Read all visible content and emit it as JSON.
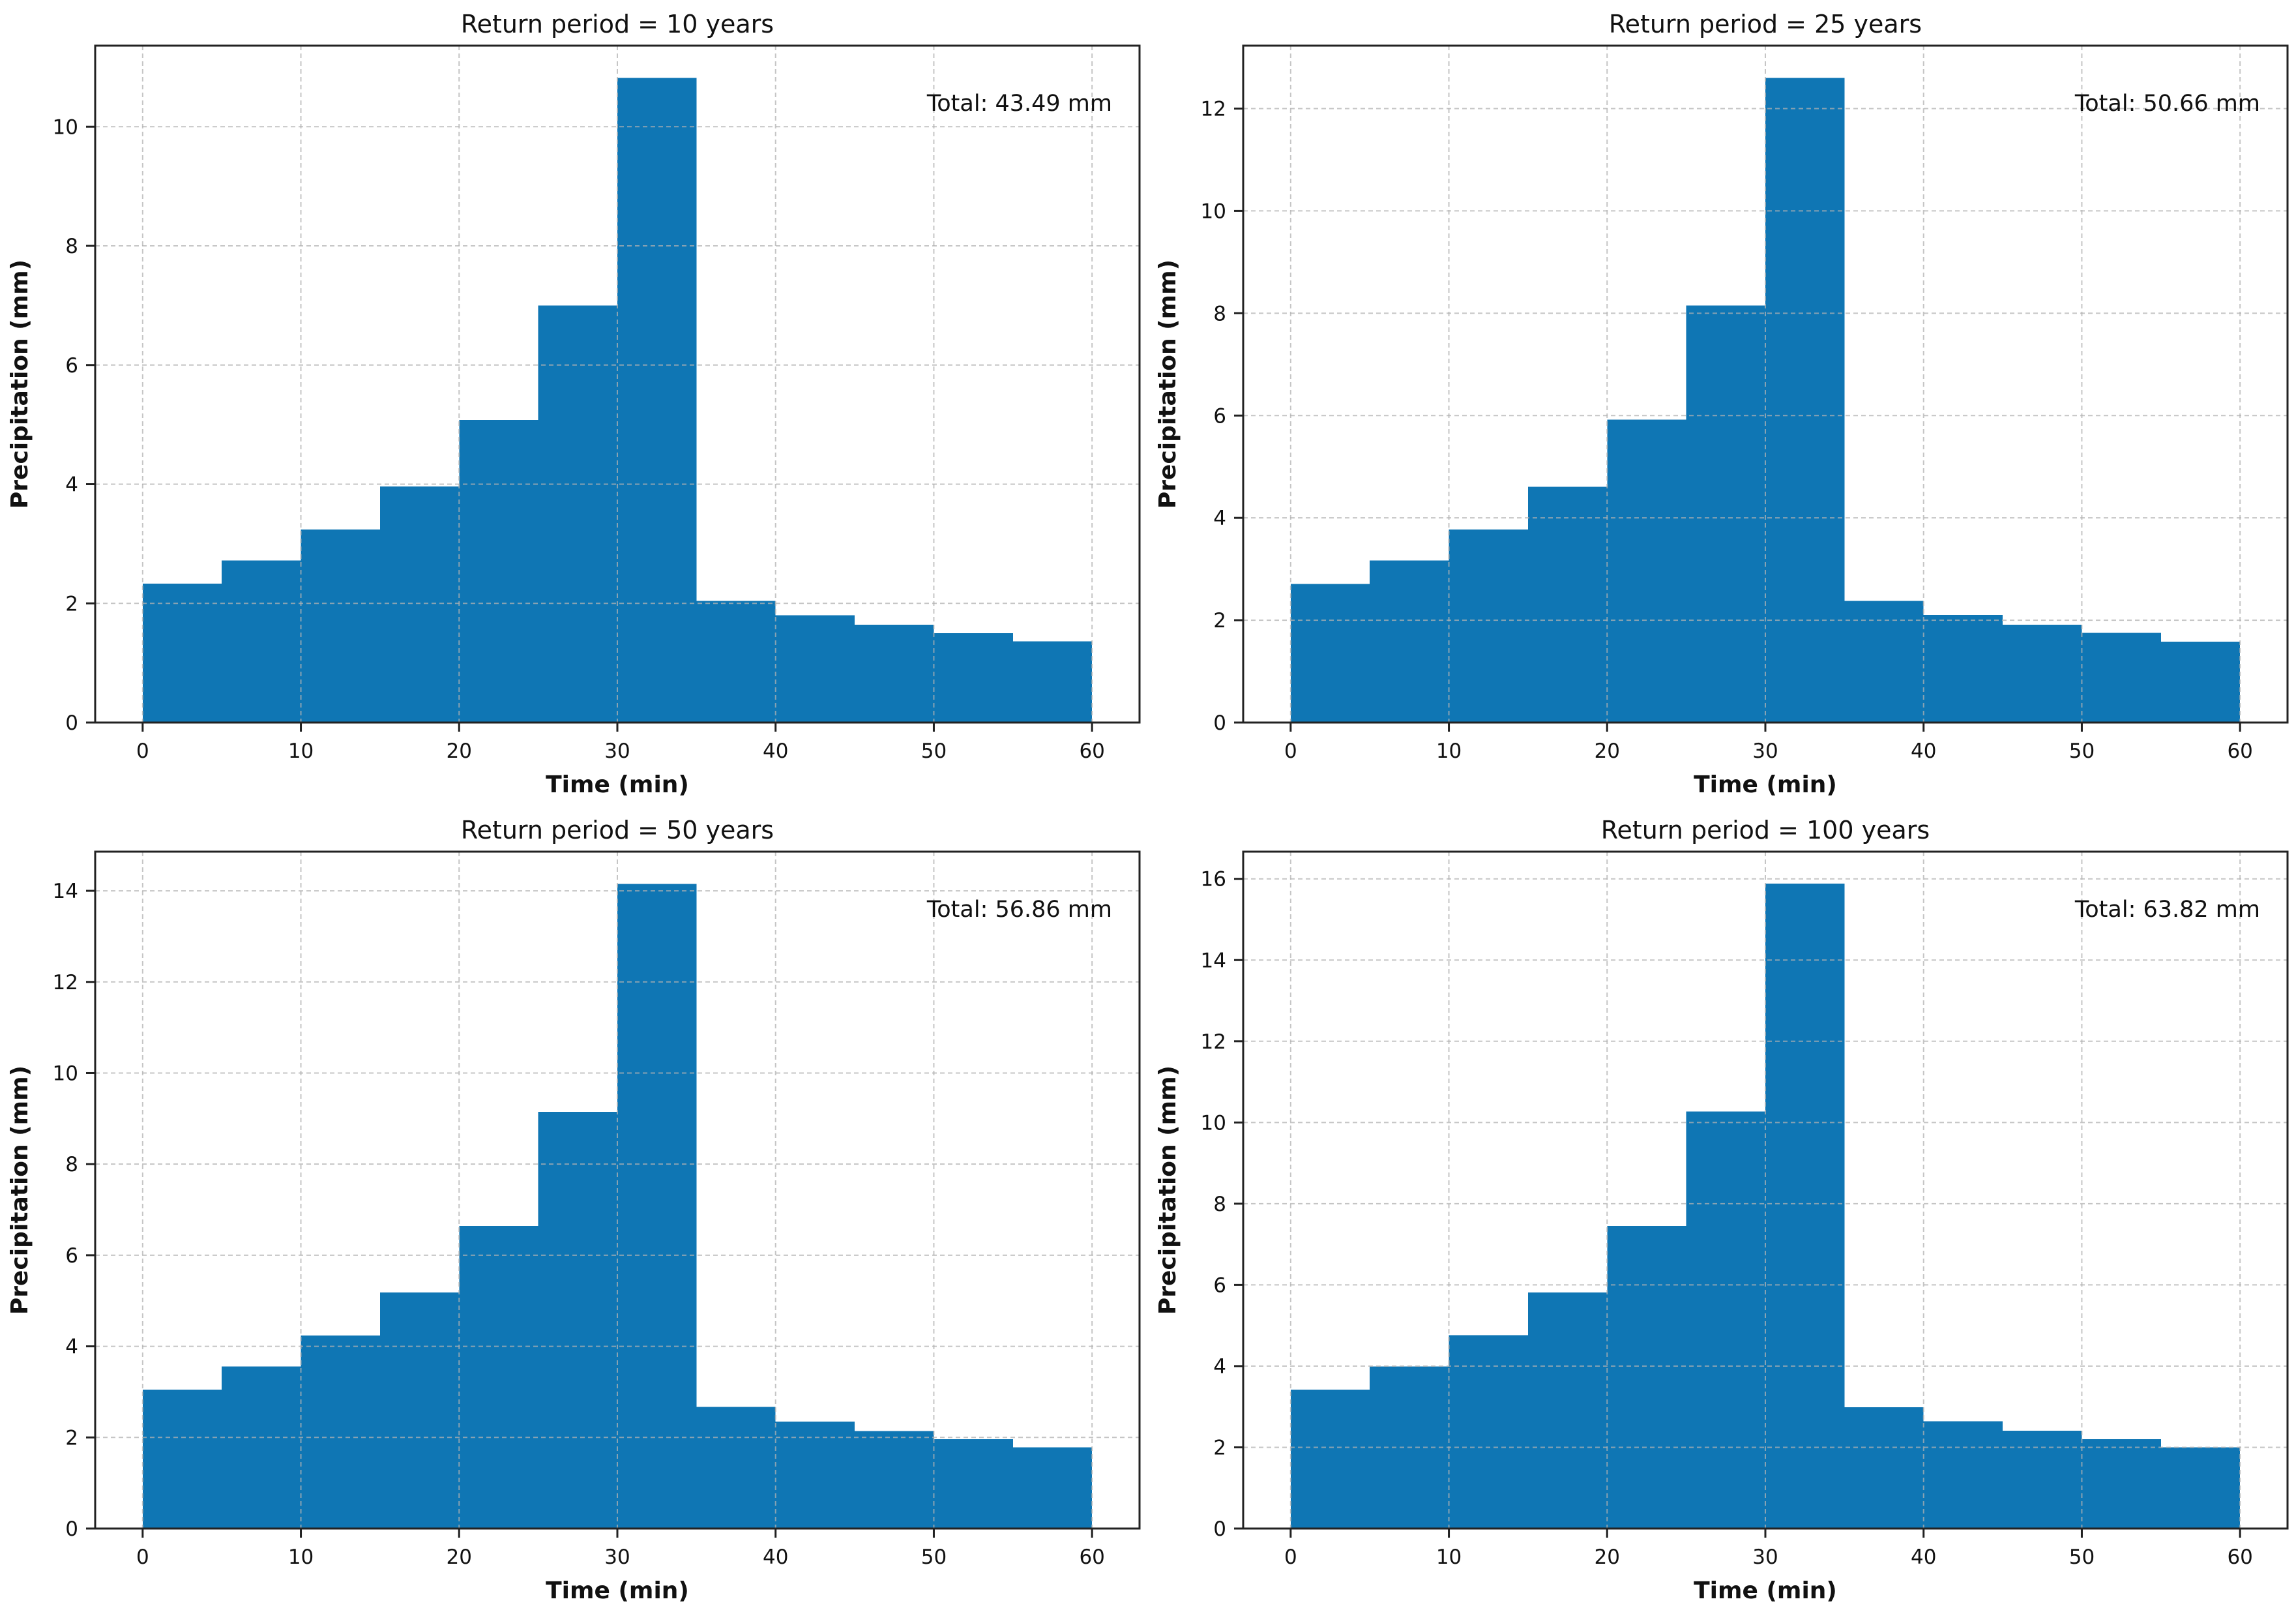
{
  "figure": {
    "background": "#ffffff",
    "bar_color": "#0f76b4",
    "grid_color": "rgba(178,178,178,0.75)",
    "spine_color": "#222222",
    "tick_color": "#222222",
    "text_color": "#111111"
  },
  "chart_data": [
    {
      "type": "bar",
      "title": "Return period = 10 years",
      "xlabel": "Time (min)",
      "ylabel": "Precipitation (mm)",
      "annotation": "Total: 43.49 mm",
      "bin_start_min": [
        0,
        5,
        10,
        15,
        20,
        25,
        30,
        35,
        40,
        45,
        50,
        55
      ],
      "bar_width_min": 5,
      "values": [
        2.33,
        2.72,
        3.24,
        3.96,
        5.08,
        7.0,
        10.82,
        2.04,
        1.8,
        1.64,
        1.5,
        1.36
      ],
      "xticks": [
        0,
        10,
        20,
        30,
        40,
        50,
        60
      ],
      "yticks": [
        0,
        2,
        4,
        6,
        8,
        10
      ],
      "xlim": [
        -3,
        63
      ],
      "ylim": [
        0,
        11.36
      ],
      "grid": true,
      "legend": null
    },
    {
      "type": "bar",
      "title": "Return period = 25 years",
      "xlabel": "Time (min)",
      "ylabel": "Precipitation (mm)",
      "annotation": "Total: 50.66 mm",
      "bin_start_min": [
        0,
        5,
        10,
        15,
        20,
        25,
        30,
        35,
        40,
        45,
        50,
        55
      ],
      "bar_width_min": 5,
      "values": [
        2.71,
        3.17,
        3.77,
        4.61,
        5.92,
        8.15,
        12.6,
        2.38,
        2.1,
        1.91,
        1.75,
        1.58
      ],
      "xticks": [
        0,
        10,
        20,
        30,
        40,
        50,
        60
      ],
      "yticks": [
        0,
        2,
        4,
        6,
        8,
        10,
        12
      ],
      "xlim": [
        -3,
        63
      ],
      "ylim": [
        0,
        13.23
      ],
      "grid": true,
      "legend": null
    },
    {
      "type": "bar",
      "title": "Return period = 50 years",
      "xlabel": "Time (min)",
      "ylabel": "Precipitation (mm)",
      "annotation": "Total: 56.86 mm",
      "bin_start_min": [
        0,
        5,
        10,
        15,
        20,
        25,
        30,
        35,
        40,
        45,
        50,
        55
      ],
      "bar_width_min": 5,
      "values": [
        3.05,
        3.56,
        4.24,
        5.18,
        6.64,
        9.15,
        14.15,
        2.67,
        2.35,
        2.14,
        1.96,
        1.78
      ],
      "xticks": [
        0,
        10,
        20,
        30,
        40,
        50,
        60
      ],
      "yticks": [
        0,
        2,
        4,
        6,
        8,
        10,
        12,
        14
      ],
      "xlim": [
        -3,
        63
      ],
      "ylim": [
        0,
        14.86
      ],
      "grid": true,
      "legend": null
    },
    {
      "type": "bar",
      "title": "Return period = 100 years",
      "xlabel": "Time (min)",
      "ylabel": "Precipitation (mm)",
      "annotation": "Total: 63.82 mm",
      "bin_start_min": [
        0,
        5,
        10,
        15,
        20,
        25,
        30,
        35,
        40,
        45,
        50,
        55
      ],
      "bar_width_min": 5,
      "values": [
        3.42,
        3.99,
        4.76,
        5.81,
        7.45,
        10.27,
        15.88,
        2.99,
        2.64,
        2.41,
        2.2,
        2.0
      ],
      "xticks": [
        0,
        10,
        20,
        30,
        40,
        50,
        60
      ],
      "yticks": [
        0,
        2,
        4,
        6,
        8,
        10,
        12,
        14,
        16
      ],
      "xlim": [
        -3,
        63
      ],
      "ylim": [
        0,
        16.67
      ],
      "grid": true,
      "legend": null
    }
  ]
}
